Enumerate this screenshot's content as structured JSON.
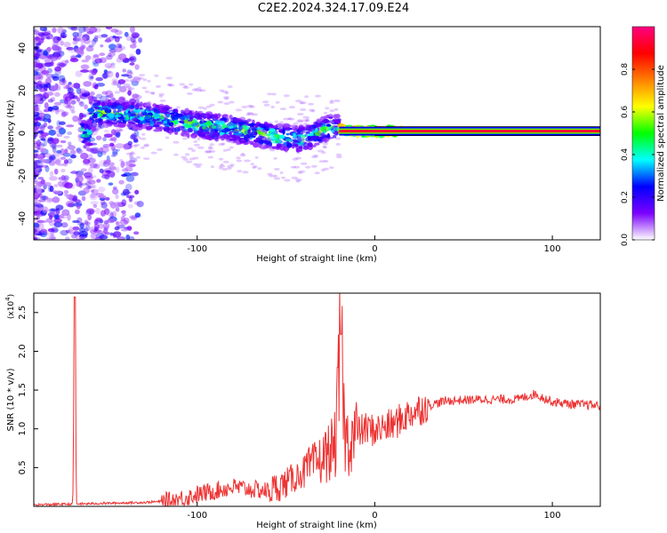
{
  "title": "C2E2.2024.324.17.09.E24",
  "colors": {
    "snr_line": "#ee3333",
    "track": "#ff2020",
    "axis": "#000000"
  },
  "chart_data": [
    {
      "type": "heatmap",
      "name": "spectrogram",
      "xlabel": "Height of straight line (km)",
      "ylabel": "Frequency (Hz)",
      "xlim": [
        -192,
        127
      ],
      "ylim": [
        -50,
        50
      ],
      "xticks": [
        -100,
        0,
        100
      ],
      "yticks": [
        -40,
        -20,
        0,
        20,
        40
      ],
      "colorbar": {
        "label": "Normalized spectral amplitude",
        "range": [
          0,
          1
        ],
        "ticks": [
          "0.0",
          "0.2",
          "0.4",
          "0.6",
          "0.8"
        ],
        "tick_values": [
          0.0,
          0.2,
          0.4,
          0.6,
          0.8
        ],
        "colormap": [
          "#ffffff",
          "#7b00ff",
          "#0000ff",
          "#00ffff",
          "#00ff00",
          "#ffff00",
          "#ff8000",
          "#ff0000",
          "#ff0080"
        ]
      },
      "track": {
        "x": [
          -160,
          -140,
          -120,
          -100,
          -80,
          -60,
          -40,
          -25,
          -15,
          0,
          127
        ],
        "frequency": [
          10,
          9,
          7,
          4,
          2,
          -1,
          -3,
          3,
          1,
          1,
          0
        ]
      }
    },
    {
      "type": "line",
      "name": "snr",
      "xlabel": "Height of straight line (km)",
      "ylabel": "SNR (10 * v/v)",
      "multiplier": "(x10",
      "multiplier_exp": "4",
      "xlim": [
        -192,
        127
      ],
      "ylim": [
        0,
        2.75
      ],
      "xticks": [
        -100,
        0,
        100
      ],
      "yticks": [
        0.5,
        1.0,
        1.5,
        2.0,
        2.5
      ],
      "x": [
        -192,
        -170,
        -169,
        -168,
        -150,
        -130,
        -115,
        -100,
        -90,
        -80,
        -70,
        -60,
        -50,
        -40,
        -30,
        -22,
        -19,
        -17,
        -15,
        -10,
        -5,
        0,
        10,
        20,
        30,
        40,
        60,
        80,
        90,
        100,
        110,
        127
      ],
      "y": [
        0.02,
        0.03,
        2.7,
        0.03,
        0.04,
        0.05,
        0.07,
        0.15,
        0.2,
        0.25,
        0.22,
        0.2,
        0.3,
        0.45,
        0.6,
        0.8,
        2.22,
        0.9,
        0.85,
        0.95,
        1.0,
        0.98,
        1.05,
        1.2,
        1.3,
        1.36,
        1.38,
        1.38,
        1.45,
        1.35,
        1.32,
        1.3
      ]
    }
  ]
}
